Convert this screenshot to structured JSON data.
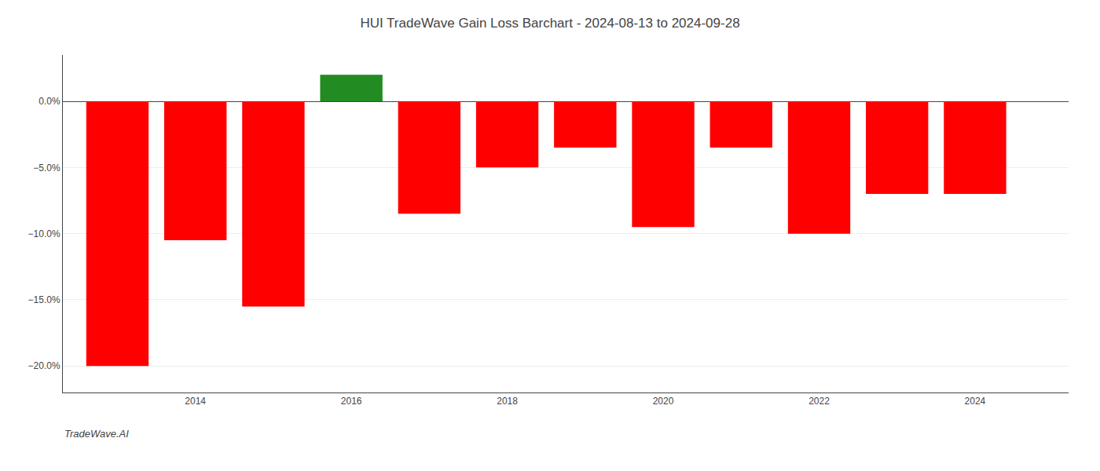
{
  "chart_data": {
    "type": "bar",
    "title": "HUI TradeWave Gain Loss Barchart - 2024-08-13 to 2024-09-28",
    "annotations": [
      "TradeWave.AI"
    ],
    "x": [
      2013,
      2014,
      2015,
      2016,
      2017,
      2018,
      2019,
      2020,
      2021,
      2022,
      2023,
      2024
    ],
    "values": [
      -20.0,
      -10.5,
      -15.5,
      2.0,
      -8.5,
      -5.0,
      -3.5,
      -9.5,
      -3.5,
      -10.0,
      -7.0,
      -7.0
    ],
    "colors": [
      "#FF0000",
      "#FF0000",
      "#FF0000",
      "#228B22",
      "#FF0000",
      "#FF0000",
      "#FF0000",
      "#FF0000",
      "#FF0000",
      "#FF0000",
      "#FF0000",
      "#FF0000"
    ],
    "xlim": [
      2012.3,
      2025.2
    ],
    "xticks": [
      2014,
      2016,
      2018,
      2020,
      2022,
      2024
    ],
    "ylim": [
      -22,
      3.5
    ],
    "yticks": [
      {
        "value": 0.0,
        "label": "0.0%"
      },
      {
        "value": -5.0,
        "label": "−5.0%"
      },
      {
        "value": -10.0,
        "label": "−10.0%"
      },
      {
        "value": -15.0,
        "label": "−15.0%"
      },
      {
        "value": -20.0,
        "label": "−20.0%"
      }
    ],
    "grid": true
  }
}
